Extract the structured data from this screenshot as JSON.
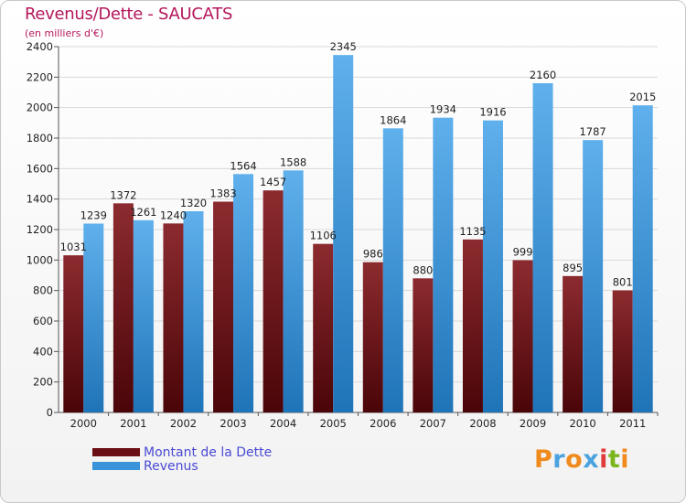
{
  "chart_data": {
    "type": "bar",
    "title": "Revenus/Dette - SAUCATS",
    "subtitle": "(en milliers d'€)",
    "categories": [
      "2000",
      "2001",
      "2002",
      "2003",
      "2004",
      "2005",
      "2006",
      "2007",
      "2008",
      "2009",
      "2010",
      "2011"
    ],
    "series": [
      {
        "name": "Montant de la Dette",
        "color": "#7a1a1f",
        "labels": [
          "1031",
          "1372",
          "1240",
          "1383",
          "1457",
          "1106",
          "986",
          "880",
          "1135",
          "999",
          "895",
          "801"
        ],
        "values": [
          1031,
          1372,
          1240,
          1383,
          1457,
          1106,
          986,
          880,
          1135,
          999,
          895,
          801
        ]
      },
      {
        "name": "Revenus",
        "color": "#3a94d9",
        "labels": [
          "1239",
          "1261",
          "1320",
          "1564",
          "1588",
          "2345",
          "1864",
          "1934",
          "1916",
          "2160",
          "1787",
          "2015"
        ],
        "values": [
          1239,
          1261,
          1320,
          1564,
          1588,
          2345,
          1864,
          1934,
          1916,
          2160,
          1787,
          2015
        ]
      }
    ],
    "yticks": [
      "0",
      "200",
      "400",
      "600",
      "800",
      "1000",
      "1200",
      "1400",
      "1600",
      "1800",
      "2000",
      "2200",
      "2400"
    ],
    "ylim": [
      0,
      2400
    ],
    "xlabel": "",
    "ylabel": "",
    "grid": true,
    "legend": "bottom-left"
  },
  "branding": {
    "letters": [
      "P",
      "r",
      "o",
      "x",
      "i",
      "t",
      "i"
    ],
    "colors": [
      "#f08a1c",
      "#4aa3df",
      "#f08a1c",
      "#4aa3df",
      "#e23b3b",
      "#7ab51d",
      "#f08a1c"
    ]
  }
}
